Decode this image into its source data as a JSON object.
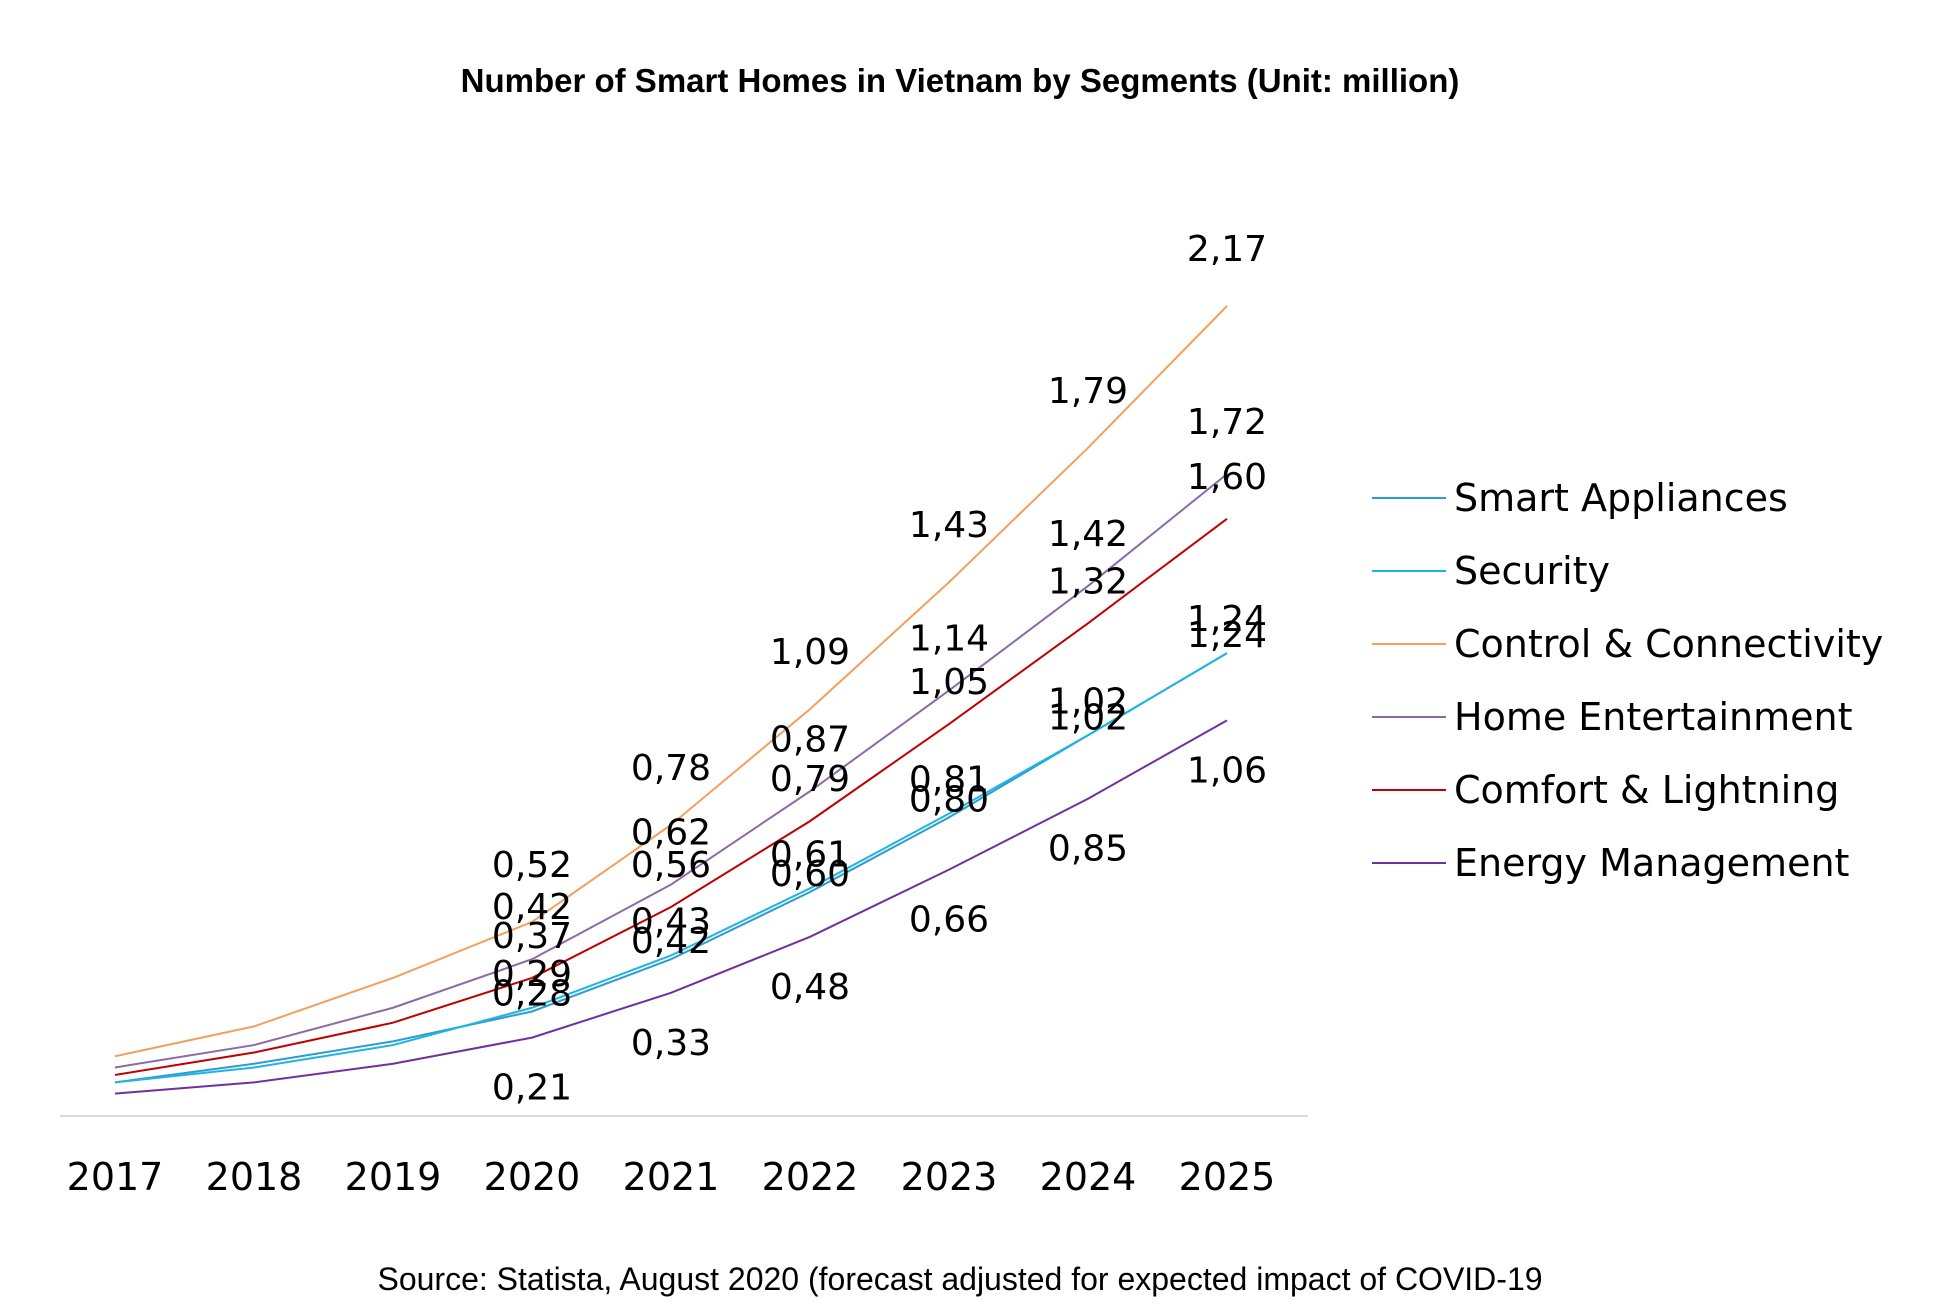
{
  "chart_data": {
    "type": "line",
    "title": "Number of Smart Homes in Vietnam by Segments (Unit: million)",
    "source": "Source: Statista, August 2020 (forecast adjusted for expected impact of COVID-19",
    "xlabel": "",
    "ylabel": "",
    "x": [
      "2017",
      "2018",
      "2019",
      "2020",
      "2021",
      "2022",
      "2023",
      "2024",
      "2025"
    ],
    "ylim": [
      0,
      2.4
    ],
    "grid": false,
    "legend_position": "right",
    "series": [
      {
        "name": "Smart Appliances",
        "color": "#2e9ccf",
        "values": [
          0.09,
          0.14,
          0.2,
          0.28,
          0.42,
          0.6,
          0.8,
          1.02,
          1.24
        ],
        "labels": [
          "",
          "",
          "",
          "0,28",
          "0,42",
          "0,60",
          "0,80",
          "1,02",
          "1,24"
        ]
      },
      {
        "name": "Security",
        "color": "#1eb4e4",
        "values": [
          0.09,
          0.13,
          0.19,
          0.29,
          0.43,
          0.61,
          0.81,
          1.02,
          1.24
        ],
        "labels": [
          "",
          "",
          "",
          "0,29",
          "0,43",
          "0,61",
          "0,81",
          "1,02",
          "1,24"
        ]
      },
      {
        "name": "Control & Connectivity",
        "color": "#f2a05c",
        "values": [
          0.16,
          0.24,
          0.37,
          0.52,
          0.78,
          1.09,
          1.43,
          1.79,
          2.17
        ],
        "labels": [
          "",
          "",
          "",
          "0,52",
          "0,78",
          "1,09",
          "1,43",
          "1,79",
          "2,17"
        ]
      },
      {
        "name": "Home Entertainment",
        "color": "#8b6aa8",
        "values": [
          0.13,
          0.19,
          0.29,
          0.42,
          0.62,
          0.87,
          1.14,
          1.42,
          1.72
        ],
        "labels": [
          "",
          "",
          "",
          "0,42",
          "0,62",
          "0,87",
          "1,14",
          "1,42",
          "1,72"
        ]
      },
      {
        "name": "Comfort & Lightning",
        "color": "#c00000",
        "values": [
          0.11,
          0.17,
          0.25,
          0.37,
          0.56,
          0.79,
          1.05,
          1.32,
          1.6
        ],
        "labels": [
          "",
          "",
          "",
          "0,37",
          "0,56",
          "0,79",
          "1,05",
          "1,32",
          "1,60"
        ]
      },
      {
        "name": "Energy Management",
        "color": "#7030a0",
        "values": [
          0.06,
          0.09,
          0.14,
          0.21,
          0.33,
          0.48,
          0.66,
          0.85,
          1.06
        ],
        "labels": [
          "",
          "",
          "",
          "0,21",
          "0,33",
          "0,48",
          "0,66",
          "0,85",
          "1,06"
        ]
      }
    ]
  }
}
